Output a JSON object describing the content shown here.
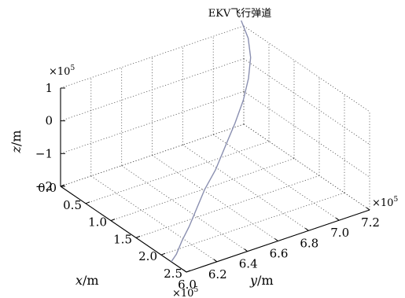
{
  "chart_data": {
    "type": "line3d",
    "title": "EKV飞行弹道",
    "xlabel": {
      "var": "x",
      "unit": "m"
    },
    "ylabel": {
      "var": "y",
      "unit": "m"
    },
    "zlabel": {
      "var": "z",
      "unit": "m"
    },
    "x_exponent": {
      "base": "×10",
      "power": "5"
    },
    "y_exponent": {
      "base": "×10",
      "power": "5"
    },
    "z_exponent": {
      "base": "×10",
      "power": "5"
    },
    "xlim": [
      0,
      2.5
    ],
    "ylim": [
      6.0,
      7.2
    ],
    "zlim": [
      -2,
      1
    ],
    "x_ticks": [
      "0.0",
      "0.5",
      "1.0",
      "1.5",
      "2.0",
      "2.5"
    ],
    "y_ticks": [
      "6.0",
      "6.2",
      "6.4",
      "6.6",
      "6.8",
      "7.0",
      "7.2"
    ],
    "z_ticks": [
      "−2",
      "−1",
      "0",
      "1"
    ],
    "grid": true,
    "series": [
      {
        "color": "#8a8fb0",
        "x": [
          2.2,
          2.15,
          2.05,
          1.95,
          1.8,
          1.65,
          1.5,
          1.3,
          1.1,
          0.9,
          0.7,
          0.5,
          0.3,
          0.1
        ],
        "y": [
          6.0,
          6.05,
          6.12,
          6.2,
          6.3,
          6.4,
          6.52,
          6.65,
          6.78,
          6.9,
          7.0,
          7.08,
          7.13,
          7.15
        ],
        "z": [
          -2.0,
          -1.9,
          -1.7,
          -1.5,
          -1.25,
          -1.0,
          -0.75,
          -0.45,
          -0.15,
          0.15,
          0.45,
          0.75,
          1.05,
          1.35
        ]
      }
    ]
  }
}
